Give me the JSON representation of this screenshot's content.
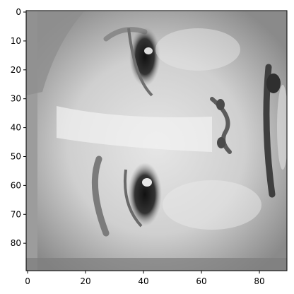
{
  "colors": {
    "background": "#ffffff",
    "axis": "#000000",
    "image_cmap": "gray"
  },
  "chart_data": {
    "type": "heatmap",
    "content": "grayscale photograph of a human face, rotated 90 degrees (face oriented sideways)",
    "image_shape": [
      90,
      90
    ],
    "colormap": "gray",
    "x_ticks": [
      "0",
      "20",
      "40",
      "60",
      "80"
    ],
    "y_ticks": [
      "0",
      "10",
      "20",
      "30",
      "40",
      "50",
      "60",
      "70",
      "80"
    ],
    "xlim": [
      -0.5,
      89.5
    ],
    "ylim": [
      89.5,
      -0.5
    ],
    "grid": false,
    "title": "",
    "xlabel": "",
    "ylabel": ""
  }
}
